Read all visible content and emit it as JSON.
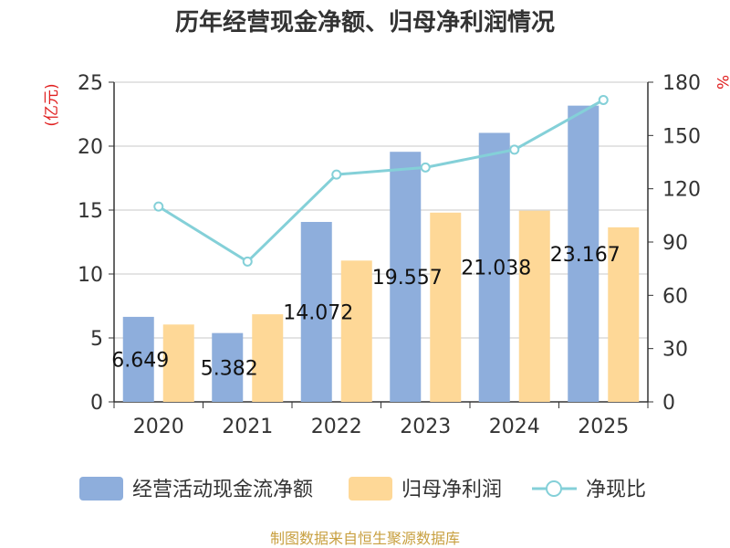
{
  "title": "历年经营现金净额、归母净利润情况",
  "source": "制图数据来自恒生聚源数据库",
  "colors": {
    "cash": "#8eaedc",
    "profit": "#fed897",
    "ratio": "#84d0d8",
    "axis_label": "#e02020",
    "axis": "#333333",
    "grid": "#c8c8c8"
  },
  "chart_data": {
    "type": "bar",
    "categories": [
      "2020",
      "2021",
      "2022",
      "2023",
      "2024",
      "2025"
    ],
    "y_left": {
      "label": "(亿元)",
      "min": 0,
      "max": 25,
      "ticks": [
        "0",
        "5",
        "10",
        "15",
        "20",
        "25"
      ]
    },
    "y_right": {
      "label": "%",
      "min": 0,
      "max": 180,
      "ticks": [
        "0",
        "30",
        "60",
        "90",
        "120",
        "150",
        "180"
      ]
    },
    "series": [
      {
        "name": "经营活动现金流净额",
        "type": "bar",
        "axis": "left",
        "values": [
          6.649,
          5.382,
          14.072,
          19.557,
          21.038,
          23.167
        ],
        "labels": [
          "6.649",
          "5.382",
          "14.072",
          "19.557",
          "21.038",
          "23.167"
        ]
      },
      {
        "name": "归母净利润",
        "type": "bar",
        "axis": "left",
        "values": [
          6.05,
          6.85,
          11.05,
          14.8,
          14.95,
          13.65
        ]
      },
      {
        "name": "净现比",
        "type": "line",
        "axis": "right",
        "values": [
          110,
          79,
          128,
          132,
          142,
          170
        ]
      }
    ],
    "legend_position": "bottom",
    "grid": true
  }
}
